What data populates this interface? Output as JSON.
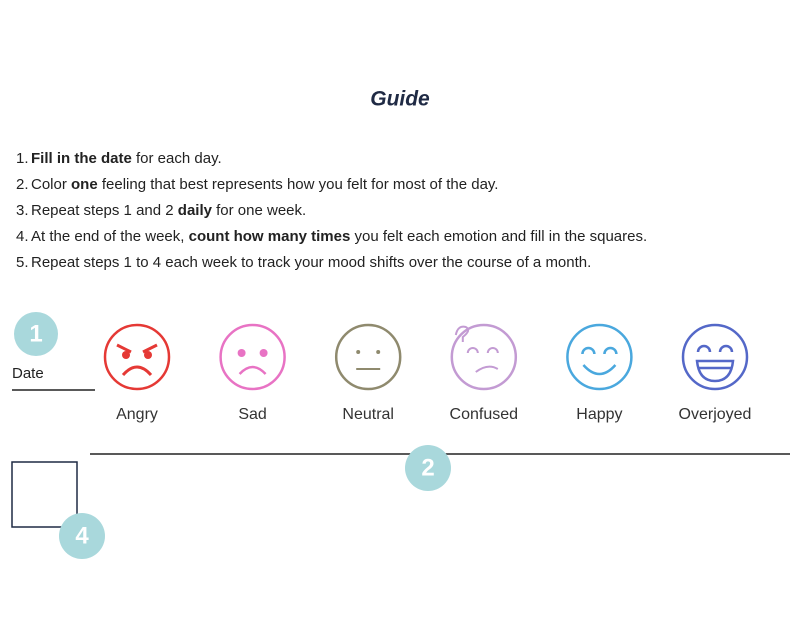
{
  "title": "Guide",
  "steps": [
    {
      "number": "1.",
      "parts": [
        {
          "text": "Fill in the date",
          "bold": true
        },
        {
          "text": " for each day."
        }
      ]
    },
    {
      "number": "2.",
      "parts": [
        {
          "text": "Color "
        },
        {
          "text": "one",
          "bold": true
        },
        {
          "text": " feeling that best represents how you felt for most of the day."
        }
      ]
    },
    {
      "number": "3.",
      "parts": [
        {
          "text": "Repeat steps 1 and 2 "
        },
        {
          "text": "daily",
          "bold": true
        },
        {
          "text": " for one week."
        }
      ]
    },
    {
      "number": "4.",
      "parts": [
        {
          "text": "At the end of the week, "
        },
        {
          "text": "count how many times",
          "bold": true
        },
        {
          "text": " you felt each emotion and fill in the squares."
        }
      ]
    },
    {
      "number": "5.",
      "parts": [
        {
          "text": "Repeat steps 1 to 4 each week to track your mood shifts over the course of a month."
        }
      ]
    }
  ],
  "markers": [
    "1",
    "2",
    "4"
  ],
  "date_label": "Date",
  "emotions": [
    {
      "label": "Angry",
      "color": "#e53935"
    },
    {
      "label": "Sad",
      "color": "#e873c4"
    },
    {
      "label": "Neutral",
      "color": "#8f8a6e"
    },
    {
      "label": "Confused",
      "color": "#c39bd3"
    },
    {
      "label": "Happy",
      "color": "#4aa8de"
    },
    {
      "label": "Overjoyed",
      "color": "#5468c8"
    }
  ]
}
